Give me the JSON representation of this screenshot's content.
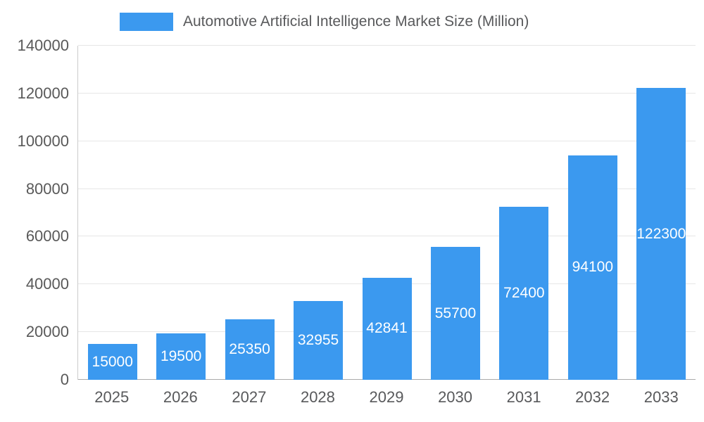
{
  "legend": {
    "title": "Automotive Artificial Intelligence Market Size (Million)",
    "swatch_color": "#3b99ef"
  },
  "chart_data": {
    "type": "bar",
    "title": "Automotive Artificial Intelligence Market Size (Million)",
    "categories": [
      "2025",
      "2026",
      "2027",
      "2028",
      "2029",
      "2030",
      "2031",
      "2032",
      "2033"
    ],
    "values": [
      15000,
      19500,
      25350,
      32955,
      42841,
      55700,
      72400,
      94100,
      122300
    ],
    "series": [
      {
        "name": "Automotive Artificial Intelligence Market Size (Million)",
        "values": [
          15000,
          19500,
          25350,
          32955,
          42841,
          55700,
          72400,
          94100,
          122300
        ]
      }
    ],
    "xlabel": "",
    "ylabel": "",
    "ylim": [
      0,
      140000
    ],
    "yticks": [
      0,
      20000,
      40000,
      60000,
      80000,
      100000,
      120000,
      140000
    ],
    "grid": true,
    "legend_position": "top",
    "bar_color": "#3b99ef",
    "value_label_color": "#ffffff",
    "value_label_position": "inside-center"
  }
}
